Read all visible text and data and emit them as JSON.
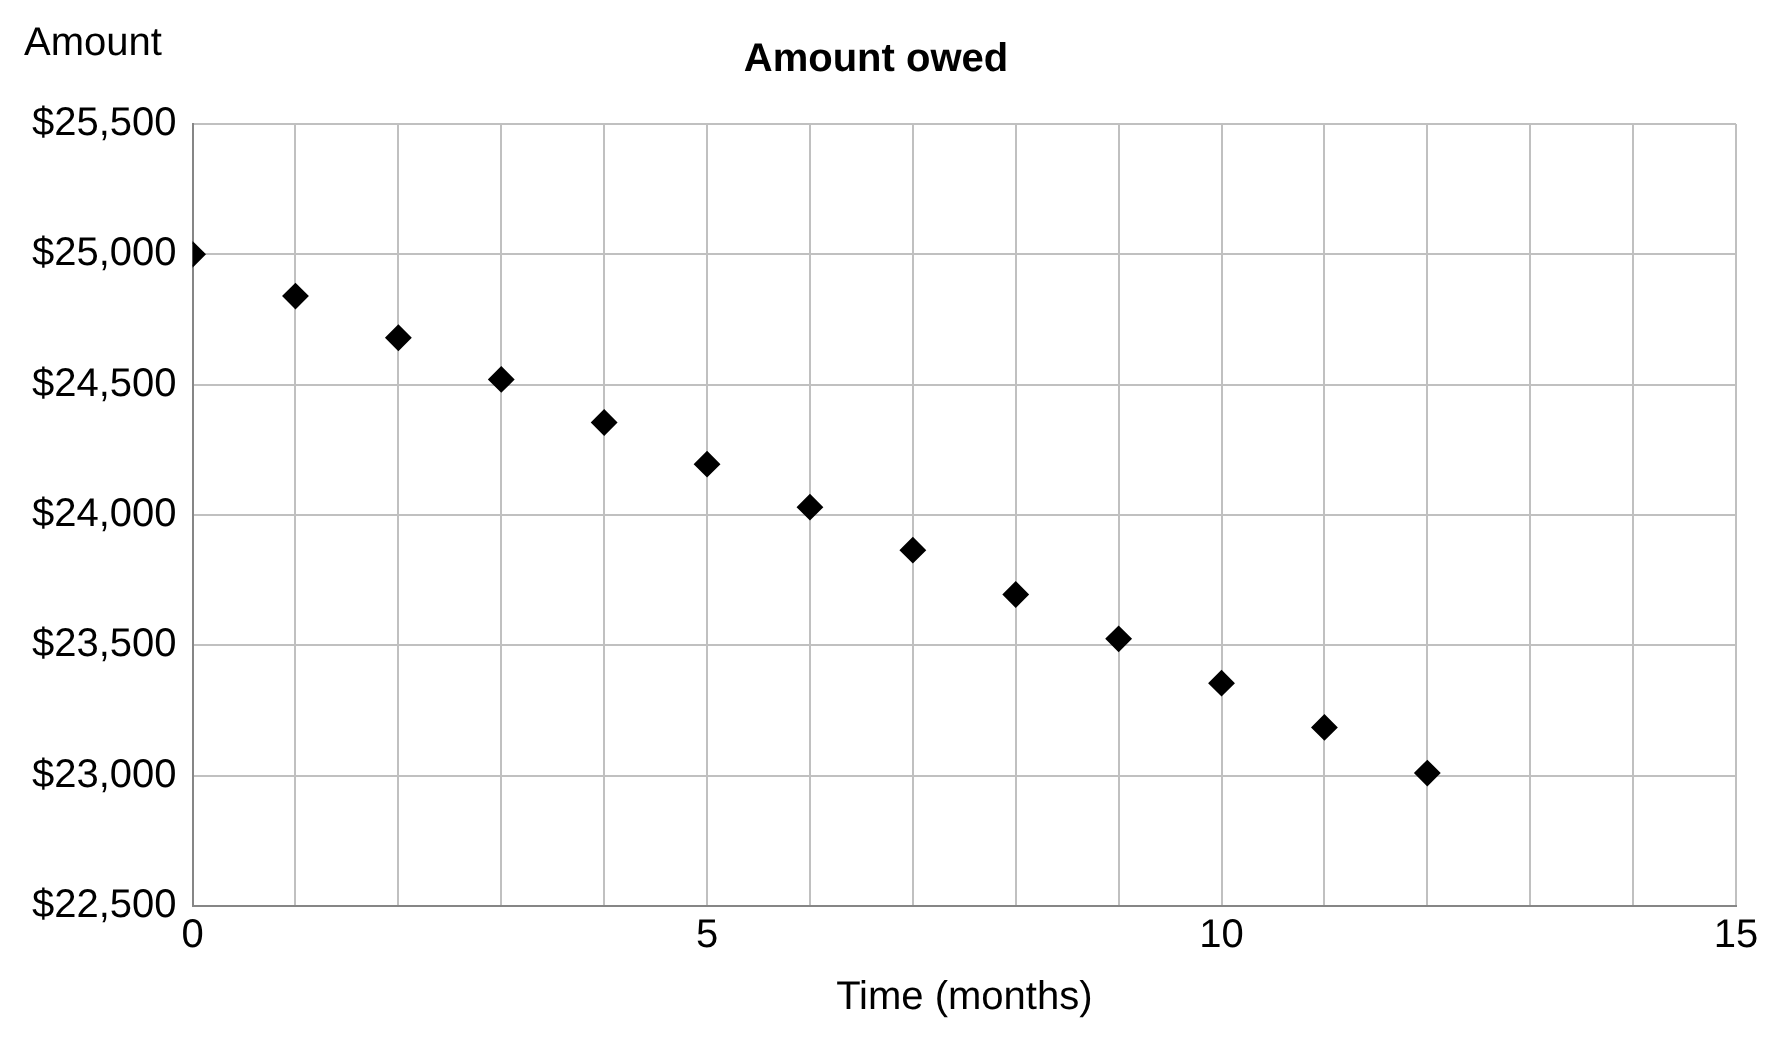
{
  "chart_data": {
    "type": "scatter",
    "title": "Amount owed",
    "xlabel": "Time (months)",
    "ylabel": "Amount",
    "x": [
      0,
      1,
      2,
      3,
      4,
      5,
      6,
      7,
      8,
      9,
      10,
      11,
      12
    ],
    "series": [
      {
        "color": "#000000",
        "values": [
          25000,
          24840,
          24680,
          24520,
          24355,
          24195,
          24030,
          23865,
          23695,
          23525,
          23355,
          23185,
          23010
        ]
      }
    ],
    "xlim": [
      0,
      15
    ],
    "xticks": [
      0,
      {
        "value": 1,
        "label": null
      },
      {
        "value": 2,
        "label": null
      },
      {
        "value": 3,
        "label": null
      },
      {
        "value": 4,
        "label": null
      },
      5,
      {
        "value": 6,
        "label": null
      },
      {
        "value": 7,
        "label": null
      },
      {
        "value": 8,
        "label": null
      },
      {
        "value": 9,
        "label": null
      },
      10,
      {
        "value": 11,
        "label": null
      },
      {
        "value": 12,
        "label": null
      },
      {
        "value": 13,
        "label": null
      },
      {
        "value": 14,
        "label": null
      },
      15
    ],
    "ylim": [
      22500,
      25500
    ],
    "yticks": [
      {
        "value": 22500,
        "label": "$22,500"
      },
      {
        "value": 23000,
        "label": "$23,000"
      },
      {
        "value": 23500,
        "label": "$23,500"
      },
      {
        "value": 24000,
        "label": "$24,000"
      },
      {
        "value": 24500,
        "label": "$24,500"
      },
      {
        "value": 25000,
        "label": "$25,000"
      },
      {
        "value": 25500,
        "label": "$25,500"
      }
    ],
    "grid": true,
    "marker": "diamond",
    "legend": false
  }
}
